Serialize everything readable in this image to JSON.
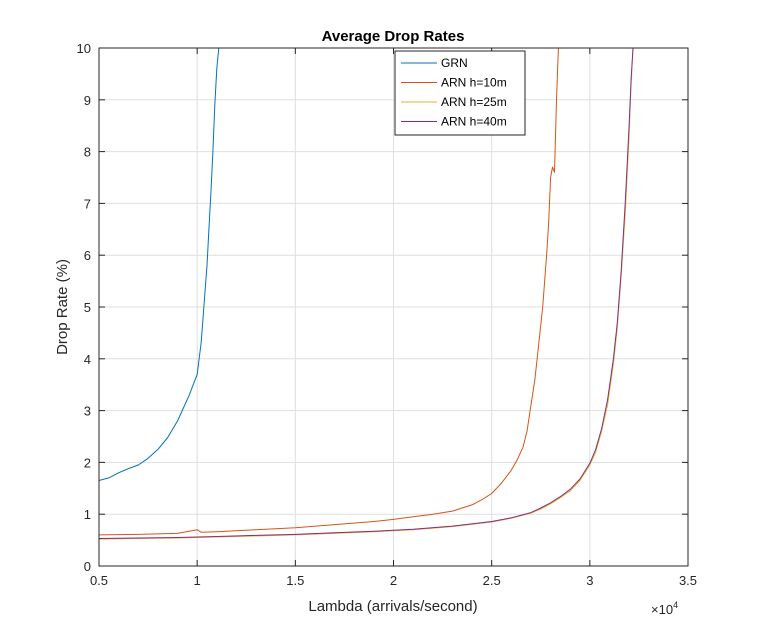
{
  "chart_data": {
    "type": "line",
    "title": "Average Drop Rates",
    "xlabel": "Lambda (arrivals/second)",
    "ylabel": "Drop Rate (%)",
    "x_exponent_label": "×10",
    "x_exponent_power": "4",
    "xlim": [
      5000,
      35000
    ],
    "ylim": [
      0,
      10
    ],
    "xticks": [
      5000,
      10000,
      15000,
      20000,
      25000,
      30000,
      35000
    ],
    "xtick_labels": [
      "0.5",
      "1",
      "1.5",
      "2",
      "2.5",
      "3",
      "3.5"
    ],
    "yticks": [
      0,
      1,
      2,
      3,
      4,
      5,
      6,
      7,
      8,
      9,
      10
    ],
    "ytick_labels": [
      "0",
      "1",
      "2",
      "3",
      "4",
      "5",
      "6",
      "7",
      "8",
      "9",
      "10"
    ],
    "grid": true,
    "legend_position": "top-center",
    "series": [
      {
        "name": "GRN",
        "color": "#0072BD",
        "x": [
          5000,
          5500,
          6000,
          6500,
          7000,
          7500,
          8000,
          8500,
          9000,
          9300,
          9600,
          9800,
          10000,
          10100,
          10200,
          10300,
          10400,
          10500,
          10600,
          10700,
          10800,
          10900,
          11000,
          11100
        ],
        "y": [
          1.65,
          1.7,
          1.8,
          1.88,
          1.95,
          2.08,
          2.25,
          2.48,
          2.8,
          3.05,
          3.3,
          3.5,
          3.7,
          4.0,
          4.3,
          4.8,
          5.3,
          5.8,
          6.5,
          7.2,
          8.0,
          8.9,
          9.6,
          10.0
        ]
      },
      {
        "name": "ARN h=10m",
        "color": "#D95319",
        "x": [
          5000,
          7000,
          9000,
          10000,
          10200,
          11000,
          13000,
          15000,
          17000,
          19000,
          20000,
          21000,
          22000,
          23000,
          24000,
          24500,
          25000,
          25500,
          26000,
          26300,
          26600,
          26800,
          27000,
          27200,
          27400,
          27600,
          27800,
          27900,
          28000,
          28100,
          28200,
          28300,
          28400
        ],
        "y": [
          0.6,
          0.61,
          0.63,
          0.7,
          0.65,
          0.66,
          0.7,
          0.74,
          0.8,
          0.86,
          0.9,
          0.95,
          1.0,
          1.06,
          1.18,
          1.28,
          1.4,
          1.6,
          1.85,
          2.05,
          2.3,
          2.6,
          3.1,
          3.6,
          4.3,
          5.0,
          6.0,
          6.6,
          7.5,
          7.7,
          7.6,
          9.0,
          10.0
        ]
      },
      {
        "name": "ARN h=25m",
        "color": "#EDB120",
        "x": [
          5000,
          7000,
          9000,
          11000,
          13000,
          15000,
          17000,
          19000,
          21000,
          23000,
          25000,
          26000,
          27000,
          27500,
          28000,
          28500,
          29000,
          29500,
          30000,
          30300,
          30600,
          30900,
          31200,
          31400,
          31600,
          31800,
          32000,
          32100,
          32200
        ],
        "y": [
          0.52,
          0.53,
          0.54,
          0.56,
          0.58,
          0.6,
          0.63,
          0.66,
          0.7,
          0.76,
          0.85,
          0.92,
          1.02,
          1.1,
          1.2,
          1.32,
          1.45,
          1.65,
          1.95,
          2.2,
          2.6,
          3.1,
          3.9,
          4.6,
          5.6,
          6.8,
          8.3,
          9.3,
          10.0
        ]
      },
      {
        "name": "ARN h=40m",
        "color": "#7E2F8E",
        "x": [
          5000,
          7000,
          9000,
          11000,
          13000,
          15000,
          17000,
          19000,
          21000,
          23000,
          25000,
          26000,
          27000,
          27500,
          28000,
          28500,
          29000,
          29500,
          30000,
          30300,
          30600,
          30900,
          31200,
          31400,
          31600,
          31800,
          32000,
          32100,
          32200
        ],
        "y": [
          0.53,
          0.54,
          0.55,
          0.57,
          0.59,
          0.61,
          0.64,
          0.67,
          0.71,
          0.77,
          0.86,
          0.93,
          1.03,
          1.12,
          1.22,
          1.34,
          1.48,
          1.68,
          1.98,
          2.25,
          2.65,
          3.2,
          4.0,
          4.7,
          5.7,
          7.0,
          8.5,
          9.4,
          10.0
        ]
      }
    ]
  }
}
